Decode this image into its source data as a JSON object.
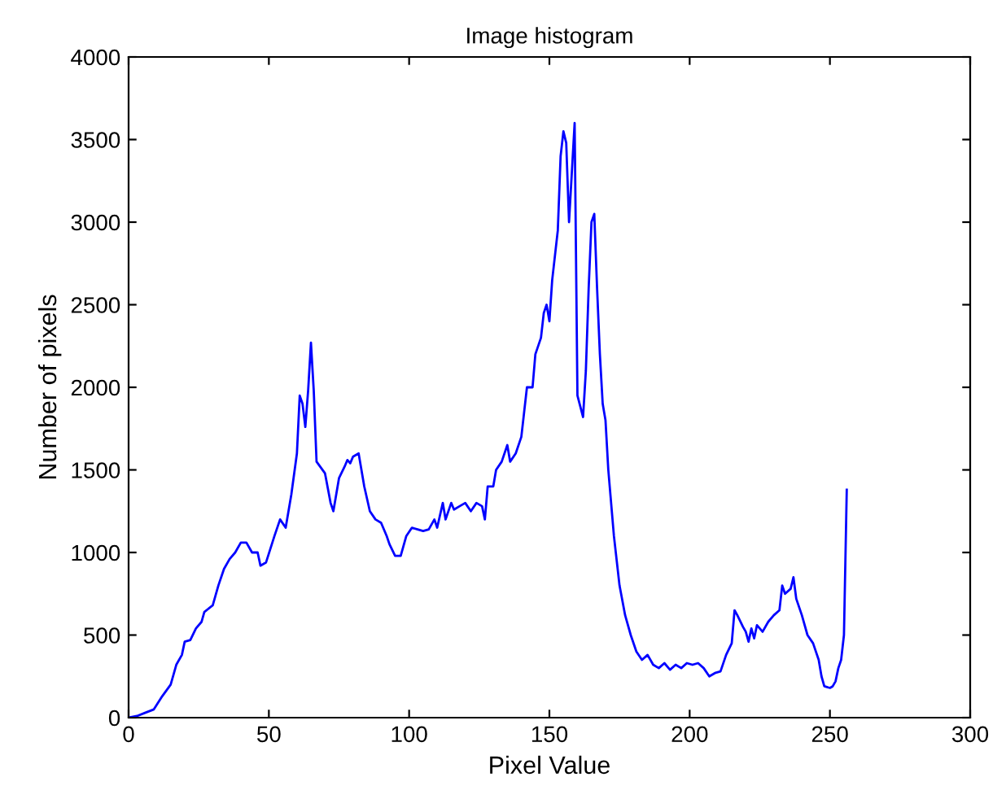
{
  "chart_data": {
    "type": "line",
    "title": "Image histogram",
    "xlabel": "Pixel Value",
    "ylabel": "Number of pixels",
    "xlim": [
      0,
      300
    ],
    "xticks": [
      0,
      50,
      100,
      150,
      200,
      250,
      300
    ],
    "ylim": [
      0,
      4000
    ],
    "yticks": [
      0,
      500,
      1000,
      1500,
      2000,
      2500,
      3000,
      3500,
      4000
    ],
    "grid": false,
    "legend": false,
    "marker": "none",
    "line_style": "solid",
    "series": [
      {
        "color": "#0000ff",
        "x": [
          0,
          3,
          6,
          9,
          12,
          15,
          17,
          19,
          20,
          22,
          24,
          26,
          27,
          30,
          32,
          34,
          36,
          38,
          40,
          42,
          44,
          46,
          47,
          49,
          52,
          54,
          56,
          58,
          60,
          61,
          62,
          63,
          64,
          65,
          66,
          67,
          70,
          72,
          73,
          75,
          77,
          78,
          79,
          80,
          82,
          84,
          86,
          88,
          90,
          92,
          93,
          95,
          97,
          99,
          101,
          103,
          105,
          107,
          109,
          110,
          112,
          113,
          115,
          116,
          118,
          120,
          122,
          124,
          126,
          127,
          128,
          130,
          131,
          133,
          135,
          136,
          138,
          140,
          142,
          144,
          145,
          147,
          148,
          149,
          150,
          151,
          153,
          154,
          155,
          156,
          157,
          158,
          159,
          160,
          162,
          163,
          164,
          165,
          166,
          167,
          168,
          169,
          170,
          171,
          173,
          175,
          177,
          179,
          181,
          183,
          185,
          187,
          189,
          191,
          193,
          195,
          197,
          199,
          201,
          203,
          205,
          207,
          209,
          211,
          213,
          215,
          216,
          217,
          219,
          220,
          221,
          222,
          223,
          224,
          226,
          228,
          230,
          232,
          233,
          234,
          236,
          237,
          238,
          240,
          242,
          244,
          246,
          247,
          248,
          250,
          251,
          252,
          253,
          254,
          255,
          256
        ],
        "values": [
          0,
          10,
          30,
          50,
          130,
          200,
          320,
          380,
          460,
          470,
          540,
          580,
          640,
          680,
          800,
          900,
          960,
          1000,
          1060,
          1060,
          1000,
          1000,
          920,
          940,
          1100,
          1200,
          1150,
          1350,
          1600,
          1950,
          1900,
          1760,
          1980,
          2270,
          1980,
          1550,
          1480,
          1300,
          1250,
          1450,
          1520,
          1560,
          1540,
          1580,
          1600,
          1400,
          1250,
          1200,
          1180,
          1100,
          1050,
          980,
          980,
          1100,
          1150,
          1140,
          1130,
          1140,
          1200,
          1150,
          1300,
          1200,
          1300,
          1260,
          1280,
          1300,
          1250,
          1300,
          1280,
          1200,
          1400,
          1400,
          1500,
          1550,
          1650,
          1550,
          1600,
          1700,
          2000,
          2000,
          2200,
          2300,
          2450,
          2500,
          2400,
          2650,
          2950,
          3400,
          3550,
          3480,
          3000,
          3300,
          3600,
          1950,
          1820,
          2100,
          2600,
          3000,
          3050,
          2600,
          2200,
          1900,
          1800,
          1500,
          1100,
          800,
          620,
          500,
          400,
          350,
          380,
          320,
          300,
          330,
          290,
          320,
          300,
          330,
          320,
          330,
          300,
          250,
          270,
          280,
          380,
          450,
          650,
          620,
          550,
          520,
          460,
          540,
          480,
          560,
          520,
          580,
          620,
          650,
          800,
          750,
          780,
          850,
          720,
          620,
          500,
          450,
          350,
          250,
          190,
          180,
          190,
          220,
          300,
          350,
          500,
          1380
        ]
      }
    ]
  }
}
